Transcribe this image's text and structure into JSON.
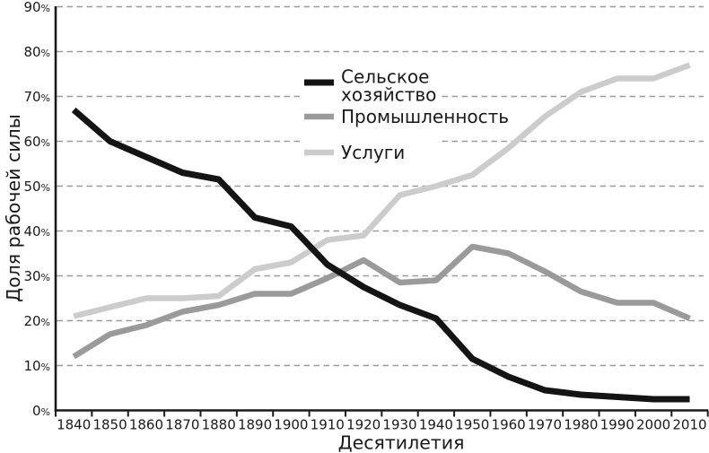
{
  "chart_data": {
    "type": "line",
    "title": "",
    "xlabel": "Десятилетия",
    "ylabel": "Доля рабочей силы",
    "categories": [
      "1840",
      "1850",
      "1860",
      "1870",
      "1880",
      "1890",
      "1900",
      "1910",
      "1920",
      "1930",
      "1940",
      "1950",
      "1960",
      "1970",
      "1980",
      "1990",
      "2000",
      "2010"
    ],
    "series": [
      {
        "name": "Сельское хозяйство",
        "legend_lines": [
          "Сельское",
          "хозяйство"
        ],
        "color": "#141414",
        "line_width": 7,
        "values": [
          67,
          60,
          56.5,
          53,
          51.5,
          43,
          41,
          32.5,
          27.5,
          23.5,
          20.5,
          11.5,
          7.5,
          4.5,
          3.5,
          3,
          2.5,
          2.5
        ]
      },
      {
        "name": "Промышленность",
        "legend_lines": [
          "Промышленность"
        ],
        "color": "#9a9a9a",
        "line_width": 6.5,
        "values": [
          12,
          17,
          19,
          22,
          23.5,
          26,
          26,
          29.5,
          33.5,
          28.5,
          29,
          36.5,
          35,
          31,
          26.5,
          24,
          24,
          20.5
        ]
      },
      {
        "name": "Услуги",
        "legend_lines": [
          "Услуги"
        ],
        "color": "#cccccc",
        "line_width": 6.5,
        "values": [
          21,
          23,
          25,
          25,
          25.5,
          31.5,
          33,
          38,
          39,
          48,
          50,
          52.5,
          58.5,
          65.5,
          71,
          74,
          74,
          77
        ]
      }
    ],
    "ylim": [
      0,
      90
    ],
    "ytick_step": 10,
    "ytick_labels": [
      "0%",
      "10%",
      "20%",
      "30%",
      "40%",
      "50%",
      "60%",
      "70%",
      "80%",
      "90%"
    ],
    "grid": true,
    "grid_color": "#9b9b9b",
    "axis_color": "#1a1a1a",
    "text_color": "#1a1a1a",
    "background": "#ffffff",
    "legend_position": "inside-top-right"
  }
}
